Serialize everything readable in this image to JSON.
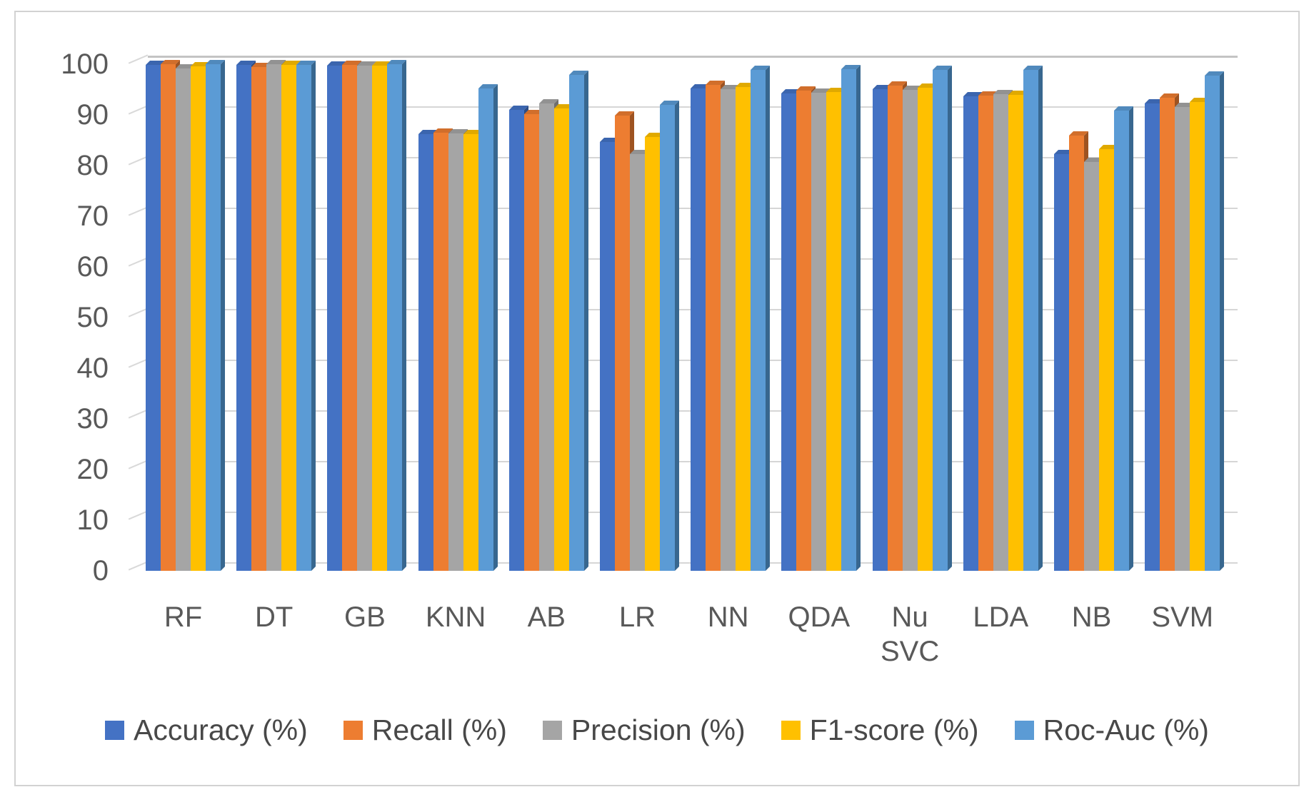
{
  "chart_data": {
    "type": "bar",
    "title": "",
    "categories": [
      "RF",
      "DT",
      "GB",
      "KNN",
      "AB",
      "LR",
      "NN",
      "QDA",
      "Nu SVC",
      "LDA",
      "NB",
      "SVM"
    ],
    "series": [
      {
        "name": "Accuracy (%)",
        "color": "#4472C4",
        "values": [
          99.8,
          99.8,
          99.7,
          86.2,
          91.0,
          84.7,
          95.2,
          94.2,
          95.1,
          93.7,
          82.2,
          92.3
        ]
      },
      {
        "name": "Recall (%)",
        "color": "#ED7D31",
        "values": [
          100,
          99.4,
          99.8,
          86.5,
          90.1,
          89.8,
          95.9,
          94.8,
          95.8,
          93.8,
          85.9,
          93.4
        ]
      },
      {
        "name": "Precision (%)",
        "color": "#A5A5A5",
        "values": [
          99.1,
          100,
          99.7,
          86.4,
          92.3,
          82.2,
          95.1,
          94.4,
          94.9,
          94.1,
          80.7,
          91.6
        ]
      },
      {
        "name": "F1-score (%)",
        "color": "#FFC000",
        "values": [
          99.6,
          99.8,
          99.7,
          86.2,
          91.2,
          85.7,
          95.5,
          94.5,
          95.3,
          93.9,
          83.2,
          92.6
        ]
      },
      {
        "name": "Roc-Auc (%)",
        "color": "#5B9BD5",
        "values": [
          100,
          99.9,
          100,
          95.2,
          97.9,
          92.0,
          98.9,
          99.0,
          98.9,
          98.9,
          90.9,
          97.7
        ]
      }
    ],
    "xlabel": "",
    "ylabel": "",
    "ylim": [
      0,
      100
    ],
    "yticks": [
      0,
      10,
      20,
      30,
      40,
      50,
      60,
      70,
      80,
      90,
      100
    ],
    "grid": true,
    "style": "pseudo-3d-clustered-column",
    "legend_position": "bottom",
    "colors": {
      "gridline": "#d6d6d6",
      "axis_text": "#595959",
      "legend_text": "#484848",
      "frame_border": "#d2d2d2",
      "side_shades": [
        "#2D4D85",
        "#9E5321",
        "#6F6F6F",
        "#A67D00",
        "#38678F"
      ],
      "top_shades": [
        "#3B65AE",
        "#D16E2B",
        "#929292",
        "#E0A900",
        "#5089BC"
      ]
    }
  }
}
